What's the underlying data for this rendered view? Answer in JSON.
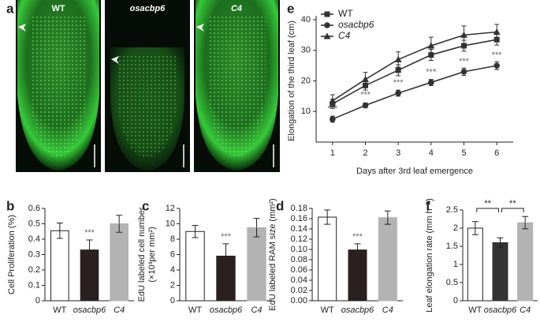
{
  "chart_data": [
    {
      "type": "image",
      "panel": "a",
      "labels": [
        "WT",
        "osacbp6",
        "C4"
      ]
    },
    {
      "type": "line",
      "panel": "e",
      "xlabel": "Days after 3rd leaf emergence",
      "ylabel": "Elongation of the third leaf (cm)",
      "x": [
        1,
        2,
        3,
        4,
        5,
        6
      ],
      "xlim": [
        0.5,
        6.5
      ],
      "xticks": [
        1,
        2,
        3,
        4,
        5,
        6
      ],
      "ylim": [
        0,
        40
      ],
      "yticks": [
        10,
        20,
        30,
        40
      ],
      "series": [
        {
          "name": "WT",
          "color": "#333333",
          "marker": "square",
          "values": [
            12.5,
            18.5,
            23.5,
            28.5,
            31.5,
            33.5
          ],
          "errors": [
            1.5,
            1.5,
            1.8,
            1.8,
            1.8,
            1.8
          ]
        },
        {
          "name": "osacbp6",
          "color": "#333333",
          "marker": "circle",
          "values": [
            7.5,
            12,
            16,
            19.5,
            23,
            25
          ],
          "errors": [
            1,
            0.8,
            1,
            1,
            1.2,
            1.3
          ]
        },
        {
          "name": "C4",
          "color": "#333333",
          "marker": "triangle",
          "values": [
            13.5,
            20.5,
            27,
            31.5,
            35,
            36
          ],
          "errors": [
            2,
            2.3,
            2.5,
            2.8,
            3,
            2.5
          ]
        }
      ],
      "annotations": [
        {
          "series": "osacbp6",
          "x": 1,
          "text": "***"
        },
        {
          "series": "osacbp6",
          "x": 2,
          "text": "***"
        },
        {
          "series": "osacbp6",
          "x": 3,
          "text": "***"
        },
        {
          "series": "osacbp6",
          "x": 4,
          "text": "***"
        },
        {
          "series": "osacbp6",
          "x": 5,
          "text": "***"
        },
        {
          "series": "osacbp6",
          "x": 6,
          "text": "***"
        }
      ]
    },
    {
      "type": "bar",
      "panel": "b",
      "ylabel": [
        "Cell Proliferation (%)"
      ],
      "categories": [
        "WT",
        "osacbp6",
        "C4"
      ],
      "values": [
        0.455,
        0.33,
        0.5
      ],
      "errors": [
        0.05,
        0.065,
        0.055
      ],
      "colors": [
        "#ffffff",
        "#2b2020",
        "#b3b3b3"
      ],
      "ylim": [
        0,
        0.6
      ],
      "yticks": [
        0,
        0.1,
        0.2,
        0.3,
        0.4,
        0.5,
        0.6
      ],
      "annotations": [
        {
          "category": "osacbp6",
          "text": "***"
        }
      ]
    },
    {
      "type": "bar",
      "panel": "c",
      "ylabel": [
        "EdU labeled cell number",
        "(×10³per mm²)"
      ],
      "categories": [
        "WT",
        "osacbp6",
        "C4"
      ],
      "values": [
        9,
        5.8,
        9.5
      ],
      "errors": [
        0.8,
        1.6,
        1.2
      ],
      "colors": [
        "#ffffff",
        "#2b2020",
        "#b3b3b3"
      ],
      "ylim": [
        0,
        12
      ],
      "yticks": [
        0,
        2,
        4,
        6,
        8,
        10,
        12
      ],
      "annotations": [
        {
          "category": "osacbp6",
          "text": "***"
        }
      ]
    },
    {
      "type": "bar",
      "panel": "d",
      "ylabel": [
        "EdU labeled RAM size (mm²)"
      ],
      "categories": [
        "WT",
        "osacbp6",
        "C4"
      ],
      "values": [
        0.163,
        0.099,
        0.162
      ],
      "errors": [
        0.014,
        0.012,
        0.013
      ],
      "colors": [
        "#ffffff",
        "#2b2020",
        "#b3b3b3"
      ],
      "ylim": [
        0,
        0.18
      ],
      "yticks": [
        {
          "value": 0,
          "label": "0.00"
        },
        {
          "value": 0.02,
          "label": "0.02"
        },
        {
          "value": 0.04,
          "label": "0.04"
        },
        {
          "value": 0.06,
          "label": "0.06"
        },
        {
          "value": 0.08,
          "label": "0.08"
        },
        {
          "value": 0.1,
          "label": "0.10"
        },
        {
          "value": 0.12,
          "label": "0.12"
        },
        {
          "value": 0.14,
          "label": "0.14"
        },
        {
          "value": 0.16,
          "label": "0.16"
        },
        {
          "value": 0.18,
          "label": "0.18"
        }
      ],
      "annotations": [
        {
          "category": "osacbp6",
          "text": "***"
        }
      ]
    },
    {
      "type": "bar",
      "panel": "f",
      "ylabel": [
        "Leaf elongation rate (mm h⁻¹)"
      ],
      "categories": [
        "WT",
        "osacbp6",
        "C4"
      ],
      "values": [
        2.0,
        1.6,
        2.15
      ],
      "errors": [
        0.18,
        0.13,
        0.17
      ],
      "colors": [
        "#ffffff",
        "#333333",
        "#b3b3b3"
      ],
      "ylim": [
        0,
        2.5
      ],
      "yticks": [
        0,
        0.5,
        1,
        1.5,
        2,
        2.5
      ],
      "brackets": [
        {
          "between": [
            "WT",
            "osacbp6"
          ],
          "text": "**"
        },
        {
          "between": [
            "osacbp6",
            "C4"
          ],
          "text": "**"
        }
      ]
    }
  ]
}
